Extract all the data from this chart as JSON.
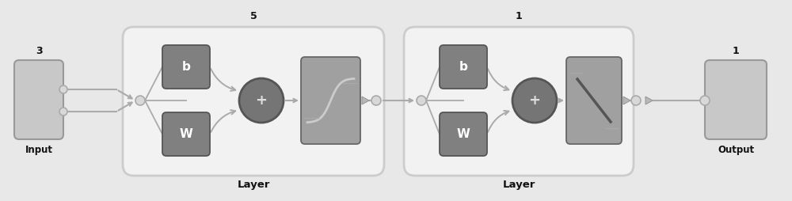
{
  "bg_color": "#e8e8e8",
  "box_light": "#c8c8c8",
  "box_dark": "#808080",
  "box_mid": "#a0a0a0",
  "layer_bg": "#f0f0f0",
  "layer_ec": "#bbbbbb",
  "text_color": "#111111",
  "arrow_color": "#aaaaaa",
  "circle_fc": "#707070",
  "circle_ec": "#555555",
  "node_fc": "#d8d8d8",
  "node_ec": "#aaaaaa",
  "input_label": "Input",
  "output_label": "Output",
  "layer_label": "Layer",
  "input_num": "3",
  "output_num": "1",
  "layer1_num": "5",
  "layer2_num": "1",
  "w_label": "W",
  "b_label": "b",
  "plus_label": "+",
  "figsize": [
    10.0,
    2.54
  ],
  "dpi": 100
}
